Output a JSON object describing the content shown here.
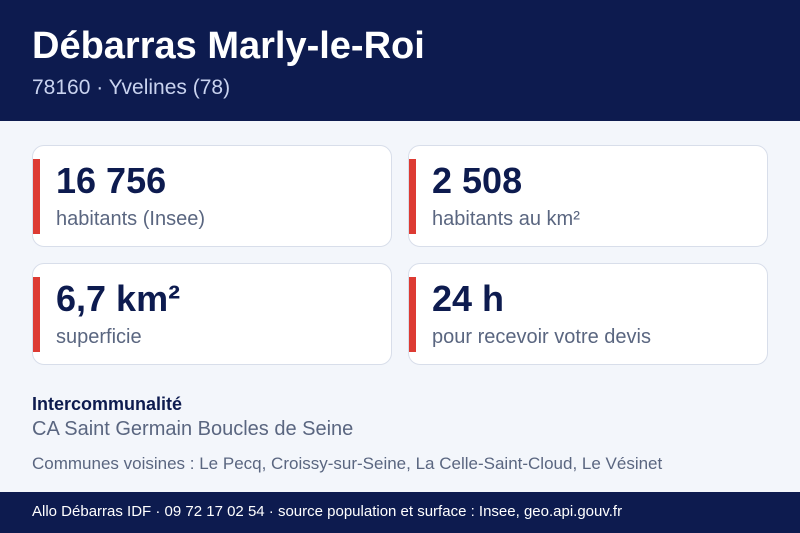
{
  "header": {
    "title": "Débarras Marly-le-Roi",
    "subtitle": "78160 · Yvelines (78)"
  },
  "stats": [
    {
      "value": "16 756",
      "label": "habitants (Insee)"
    },
    {
      "value": "2 508",
      "label": "habitants au km²"
    },
    {
      "value": "6,7 km²",
      "label": "superficie"
    },
    {
      "value": "24 h",
      "label": "pour recevoir votre devis"
    }
  ],
  "intercommunalite": {
    "heading": "Intercommunalité",
    "value": "CA Saint Germain Boucles de Seine"
  },
  "neighbors": "Communes voisines : Le Pecq, Croissy-sur-Seine, La Celle-Saint-Cloud, Le Vésinet",
  "footer": "Allo Débarras IDF · 09 72 17 02 54 · source population et surface : Insee, geo.api.gouv.fr",
  "colors": {
    "navy": "#0d1b4f",
    "accent_red": "#dd3b33",
    "background": "#f3f6fb"
  }
}
